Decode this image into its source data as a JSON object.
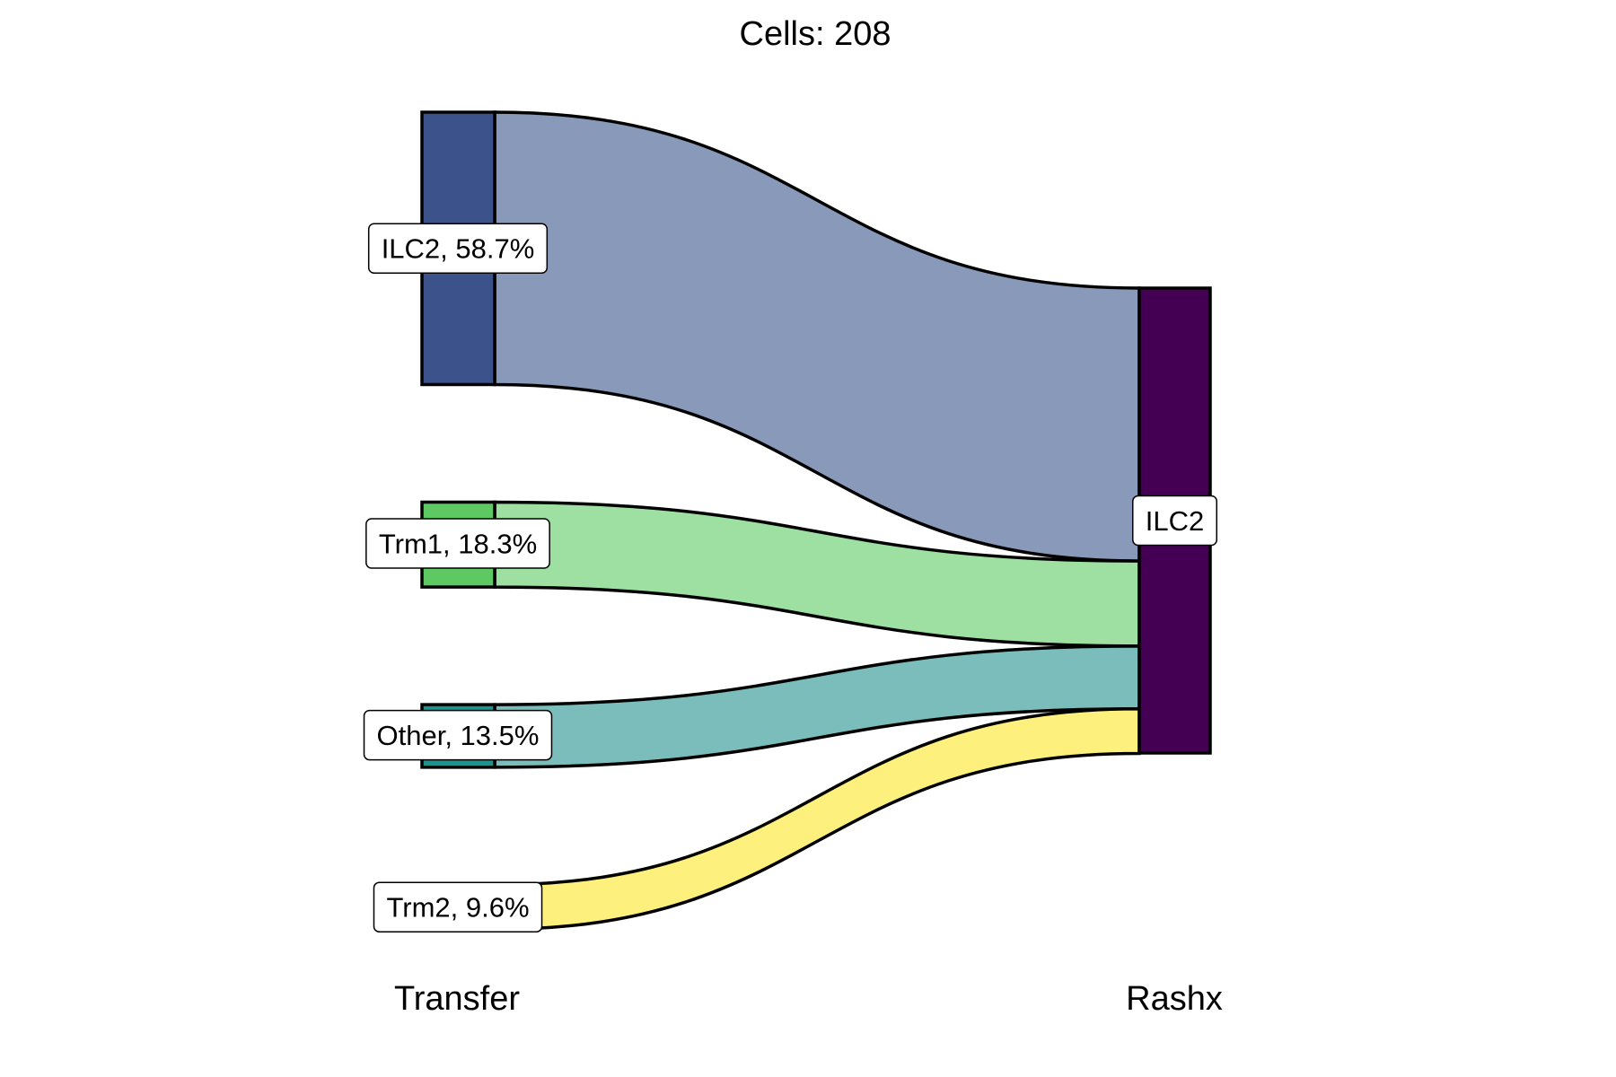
{
  "chart_data": {
    "type": "sankey",
    "title": "Cells:  208",
    "axis_labels": [
      "Transfer",
      "Rashx"
    ],
    "left_nodes": [
      {
        "name": "ILC2",
        "label": "ILC2, 58.7%",
        "percent": 58.7,
        "node_color": "#3b528b",
        "flow_color": "#8999ba"
      },
      {
        "name": "Trm1",
        "label": "Trm1, 18.3%",
        "percent": 18.3,
        "node_color": "#5ec962",
        "flow_color": "#9ee0a1"
      },
      {
        "name": "Other",
        "label": "Other, 13.5%",
        "percent": 13.5,
        "node_color": "#21918c",
        "flow_color": "#7abdba"
      },
      {
        "name": "Trm2",
        "label": "Trm2, 9.6%",
        "percent": 9.6,
        "node_color": "#fde725",
        "flow_color": "#fef07c"
      }
    ],
    "right_nodes": [
      {
        "name": "ILC2",
        "label": "ILC2",
        "percent": 100,
        "node_color": "#440154"
      }
    ],
    "flows": [
      {
        "from": "ILC2",
        "to": "ILC2",
        "percent": 58.7
      },
      {
        "from": "Trm1",
        "to": "ILC2",
        "percent": 18.3
      },
      {
        "from": "Other",
        "to": "ILC2",
        "percent": 13.5
      },
      {
        "from": "Trm2",
        "to": "ILC2",
        "percent": 9.6
      }
    ]
  }
}
